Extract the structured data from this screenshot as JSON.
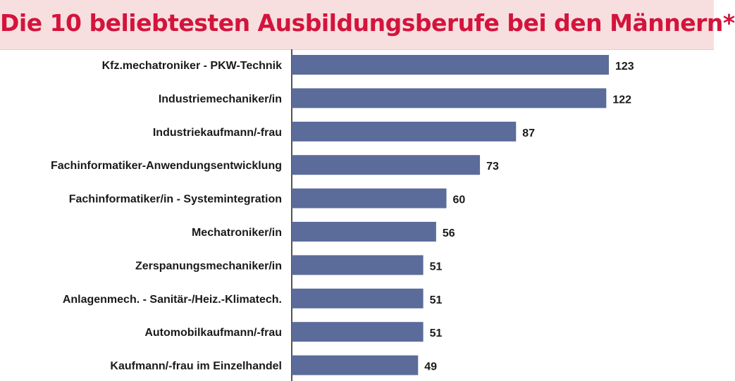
{
  "chart_data": {
    "type": "bar",
    "orientation": "horizontal",
    "title": "Die 10 beliebtesten Ausbildungsberufe bei den Männern*",
    "categories": [
      "Kfz.mechatroniker - PKW-Technik",
      "Industriemechaniker/in",
      "Industriekaufmann/-frau",
      "Fachinformatiker-Anwendungsentwicklung",
      "Fachinformatiker/in - Systemintegration",
      "Mechatroniker/in",
      "Zerspanungsmechaniker/in",
      "Anlagenmech. - Sanitär-/Heiz.-Klimatech.",
      "Automobilkaufmann/-frau",
      "Kaufmann/-frau im Einzelhandel"
    ],
    "values": [
      123,
      122,
      87,
      73,
      60,
      56,
      51,
      51,
      51,
      49
    ],
    "xlim": [
      0,
      133
    ],
    "grid": false,
    "legend": "none",
    "bar_color": "#5b6b9a",
    "title_color": "#d3143c",
    "title_band_color": "#f7dfdf"
  }
}
